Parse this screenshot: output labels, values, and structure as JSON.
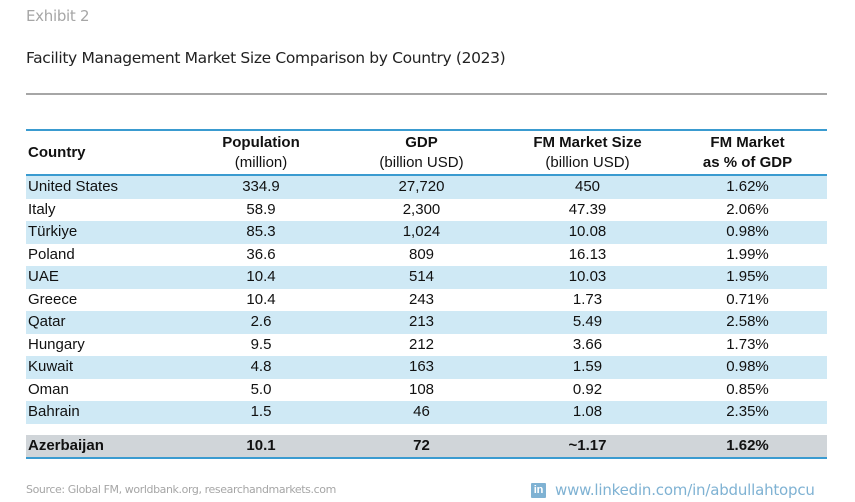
{
  "exhibit_label": "Exhibit 2",
  "title": "Facility Management Market Size Comparison by Country (2023)",
  "table": {
    "headers": [
      {
        "line1": "Country",
        "line2": ""
      },
      {
        "line1": "Population",
        "line2": "(million)"
      },
      {
        "line1": "GDP",
        "line2": "(billion USD)"
      },
      {
        "line1": "FM Market Size",
        "line2": "(billion USD)"
      },
      {
        "line1": "FM Market",
        "line2": "as % of GDP"
      }
    ],
    "rows": [
      {
        "country": "United States",
        "population": "334.9",
        "gdp": "27,720",
        "fm_size": "450",
        "fm_pct": "1.62%"
      },
      {
        "country": "Italy",
        "population": "58.9",
        "gdp": "2,300",
        "fm_size": "47.39",
        "fm_pct": "2.06%"
      },
      {
        "country": "Türkiye",
        "population": "85.3",
        "gdp": "1,024",
        "fm_size": "10.08",
        "fm_pct": "0.98%"
      },
      {
        "country": "Poland",
        "population": "36.6",
        "gdp": "809",
        "fm_size": "16.13",
        "fm_pct": "1.99%"
      },
      {
        "country": "UAE",
        "population": "10.4",
        "gdp": "514",
        "fm_size": "10.03",
        "fm_pct": "1.95%"
      },
      {
        "country": "Greece",
        "population": "10.4",
        "gdp": "243",
        "fm_size": "1.73",
        "fm_pct": "0.71%"
      },
      {
        "country": "Qatar",
        "population": "2.6",
        "gdp": "213",
        "fm_size": "5.49",
        "fm_pct": "2.58%"
      },
      {
        "country": "Hungary",
        "population": "9.5",
        "gdp": "212",
        "fm_size": "3.66",
        "fm_pct": "1.73%"
      },
      {
        "country": "Kuwait",
        "population": "4.8",
        "gdp": "163",
        "fm_size": "1.59",
        "fm_pct": "0.98%"
      },
      {
        "country": "Oman",
        "population": "5.0",
        "gdp": "108",
        "fm_size": "0.92",
        "fm_pct": "0.85%"
      },
      {
        "country": "Bahrain",
        "population": "1.5",
        "gdp": "46",
        "fm_size": "1.08",
        "fm_pct": "2.35%"
      }
    ],
    "highlight_row": {
      "country": "Azerbaijan",
      "population": "10.1",
      "gdp": "72",
      "fm_size": "~1.17",
      "fm_pct": "1.62%"
    }
  },
  "footer": {
    "source": "Source: Global FM, worldbank.org, researchandmarkets.com",
    "link_icon": "linkedin-icon",
    "link_icon_glyph": "in",
    "link_text": "www.linkedin.com/in/abdullahtopcu"
  },
  "colors": {
    "header_rule": "#3a9bd0",
    "row_shade": "#cfe9f5",
    "highlight_row": "#d0d5d9",
    "title_rule": "#a6a6a6",
    "link": "#7fb2d3"
  }
}
